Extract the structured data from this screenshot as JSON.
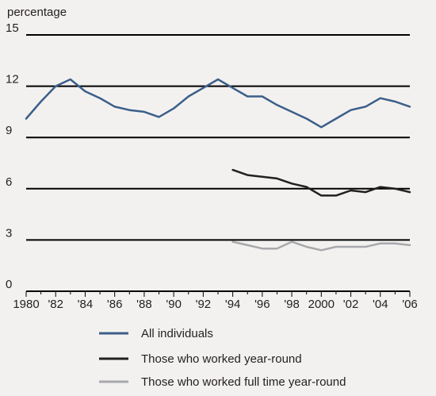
{
  "chart_data": {
    "type": "line",
    "title": "",
    "ylabel": "percentage",
    "xlabel": "",
    "xlim": [
      1980,
      2006
    ],
    "ylim": [
      0,
      15
    ],
    "y_ticks": [
      0,
      3,
      6,
      9,
      12,
      15
    ],
    "x_ticks": [
      1980,
      1982,
      1984,
      1986,
      1988,
      1990,
      1992,
      1994,
      1996,
      1998,
      2000,
      2002,
      2004,
      2006
    ],
    "x_tick_labels": [
      "1980",
      "'82",
      "'84",
      "'86",
      "'88",
      "'90",
      "'92",
      "'94",
      "'96",
      "'98",
      "2000",
      "'02",
      "'04",
      "'06"
    ],
    "grid": "horizontal",
    "legend_position": "bottom",
    "series": [
      {
        "name": "All individuals",
        "color": "#3b5f8a",
        "x": [
          1980,
          1981,
          1982,
          1983,
          1984,
          1985,
          1986,
          1987,
          1988,
          1989,
          1990,
          1991,
          1992,
          1993,
          1994,
          1995,
          1996,
          1997,
          1998,
          1999,
          2000,
          2001,
          2002,
          2003,
          2004,
          2005,
          2006
        ],
        "values": [
          10.1,
          11.1,
          12.0,
          12.4,
          11.7,
          11.3,
          10.8,
          10.6,
          10.5,
          10.2,
          10.7,
          11.4,
          11.9,
          12.4,
          11.9,
          11.4,
          11.4,
          10.9,
          10.5,
          10.1,
          9.6,
          10.1,
          10.6,
          10.8,
          11.3,
          11.1,
          10.8
        ]
      },
      {
        "name": "Those who worked year-round",
        "color": "#231f20",
        "x": [
          1994,
          1995,
          1996,
          1997,
          1998,
          1999,
          2000,
          2001,
          2002,
          2003,
          2004,
          2005,
          2006
        ],
        "values": [
          7.1,
          6.8,
          6.7,
          6.6,
          6.3,
          6.1,
          5.6,
          5.6,
          5.9,
          5.8,
          6.1,
          6.0,
          5.8
        ]
      },
      {
        "name": "Those who worked full time year-round",
        "color": "#a7a9ac",
        "x": [
          1994,
          1995,
          1996,
          1997,
          1998,
          1999,
          2000,
          2001,
          2002,
          2003,
          2004,
          2005,
          2006
        ],
        "values": [
          2.9,
          2.7,
          2.5,
          2.5,
          2.9,
          2.6,
          2.4,
          2.6,
          2.6,
          2.6,
          2.8,
          2.8,
          2.7
        ]
      }
    ]
  }
}
